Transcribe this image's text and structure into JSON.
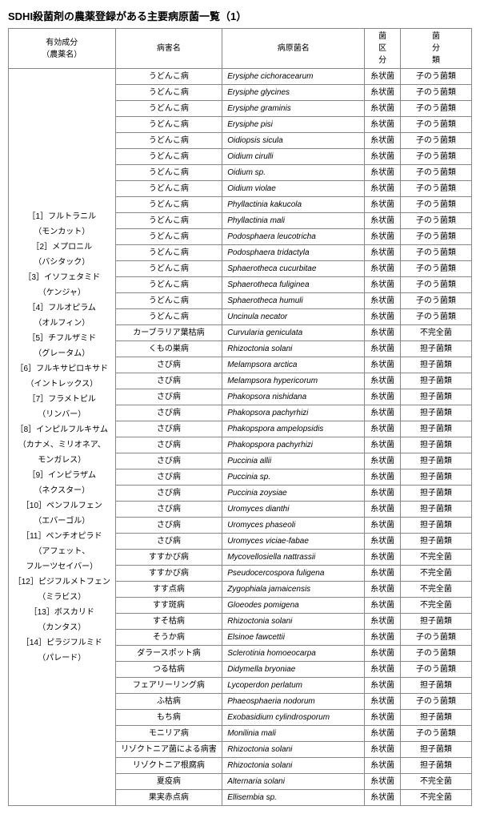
{
  "title": "SDHI殺菌剤の農薬登録がある主要病原菌一覧（1）",
  "columns": {
    "ingredient": "有効成分\n（農薬名）",
    "disease": "病害名",
    "pathogen": "病原菌名",
    "section": "菌\n区\n分",
    "classification": "菌\n分\n類"
  },
  "ingredientList": "［1］フルトラニル\n（モンカット）\n［2］メプロニル\n（バシタック）\n［3］イソフェタミド\n（ケンジャ）\n［4］フルオピラム\n（オルフィン）\n［5］チフルザミド\n（グレータム）\n［6］フルキサピロキサド\n（イントレックス）\n［7］フラメトピル\n（リンバー）\n［8］インピルフルキサム\n（カナメ、ミリオネア、\nモンガレス）\n［9］インピラザム\n（ネクスター）\n［10］ペンフルフェン\n（エバーゴル）\n［11］ペンチオピラド\n（アフェット、\nフルーツセイバー）\n［12］ピジフルメトフェン\n（ミラビス）\n［13］ボスカリド\n（カンタス）\n［14］ピラジフルミド\n（パレード）",
  "rows": [
    {
      "d": "うどんこ病",
      "p": "Erysiphe cichoracearum",
      "s": "糸状菌",
      "c": "子のう菌類"
    },
    {
      "d": "うどんこ病",
      "p": "Erysiphe glycines",
      "s": "糸状菌",
      "c": "子のう菌類"
    },
    {
      "d": "うどんこ病",
      "p": "Erysiphe graminis",
      "s": "糸状菌",
      "c": "子のう菌類"
    },
    {
      "d": "うどんこ病",
      "p": "Erysiphe pisi",
      "s": "糸状菌",
      "c": "子のう菌類"
    },
    {
      "d": "うどんこ病",
      "p": "Oidiopsis sicula",
      "s": "糸状菌",
      "c": "子のう菌類"
    },
    {
      "d": "うどんこ病",
      "p": "Oidium cirulli",
      "s": "糸状菌",
      "c": "子のう菌類"
    },
    {
      "d": "うどんこ病",
      "p": "Oidium sp.",
      "s": "糸状菌",
      "c": "子のう菌類"
    },
    {
      "d": "うどんこ病",
      "p": "Oidium violae",
      "s": "糸状菌",
      "c": "子のう菌類"
    },
    {
      "d": "うどんこ病",
      "p": "Phyllactinia kakucola",
      "s": "糸状菌",
      "c": "子のう菌類"
    },
    {
      "d": "うどんこ病",
      "p": "Phyllactinia mali",
      "s": "糸状菌",
      "c": "子のう菌類"
    },
    {
      "d": "うどんこ病",
      "p": "Podosphaera leucotricha",
      "s": "糸状菌",
      "c": "子のう菌類"
    },
    {
      "d": "うどんこ病",
      "p": "Podosphaera tridactyla",
      "s": "糸状菌",
      "c": "子のう菌類"
    },
    {
      "d": "うどんこ病",
      "p": "Sphaerotheca cucurbitae",
      "s": "糸状菌",
      "c": "子のう菌類"
    },
    {
      "d": "うどんこ病",
      "p": "Sphaerotheca fuliginea",
      "s": "糸状菌",
      "c": "子のう菌類"
    },
    {
      "d": "うどんこ病",
      "p": "Sphaerotheca humuli",
      "s": "糸状菌",
      "c": "子のう菌類"
    },
    {
      "d": "うどんこ病",
      "p": "Uncinula necator",
      "s": "糸状菌",
      "c": "子のう菌類"
    },
    {
      "d": "カーブラリア葉枯病",
      "p": "Curvularia geniculata",
      "s": "糸状菌",
      "c": "不完全菌"
    },
    {
      "d": "くもの巣病",
      "p": "Rhizoctonia solani",
      "s": "糸状菌",
      "c": "担子菌類"
    },
    {
      "d": "さび病",
      "p": "Melampsora arctica",
      "s": "糸状菌",
      "c": "担子菌類"
    },
    {
      "d": "さび病",
      "p": "Melampsora hypericorum",
      "s": "糸状菌",
      "c": "担子菌類"
    },
    {
      "d": "さび病",
      "p": "Phakopsora nishidana",
      "s": "糸状菌",
      "c": "担子菌類"
    },
    {
      "d": "さび病",
      "p": "Phakopsora pachyrhizi",
      "s": "糸状菌",
      "c": "担子菌類"
    },
    {
      "d": "さび病",
      "p": "Phakopspora ampelopsidis",
      "s": "糸状菌",
      "c": "担子菌類"
    },
    {
      "d": "さび病",
      "p": "Phakopspora pachyrhizi",
      "s": "糸状菌",
      "c": "担子菌類"
    },
    {
      "d": "さび病",
      "p": "Puccinia allii",
      "s": "糸状菌",
      "c": "担子菌類"
    },
    {
      "d": "さび病",
      "p": "Puccinia sp.",
      "s": "糸状菌",
      "c": "担子菌類"
    },
    {
      "d": "さび病",
      "p": "Puccinia zoysiae",
      "s": "糸状菌",
      "c": "担子菌類"
    },
    {
      "d": "さび病",
      "p": "Uromyces dianthi",
      "s": "糸状菌",
      "c": "担子菌類"
    },
    {
      "d": "さび病",
      "p": "Uromyces phaseoli",
      "s": "糸状菌",
      "c": "担子菌類"
    },
    {
      "d": "さび病",
      "p": "Uromyces viciae-fabae",
      "s": "糸状菌",
      "c": "担子菌類"
    },
    {
      "d": "すすかび病",
      "p": "Mycovellosiella nattrassii",
      "s": "糸状菌",
      "c": "不完全菌"
    },
    {
      "d": "すすかび病",
      "p": "Pseudocercospora fuligena",
      "s": "糸状菌",
      "c": "不完全菌"
    },
    {
      "d": "すす点病",
      "p": "Zygophiala jamaicensis",
      "s": "糸状菌",
      "c": "不完全菌"
    },
    {
      "d": "すす斑病",
      "p": "Gloeodes pomigena",
      "s": "糸状菌",
      "c": "不完全菌"
    },
    {
      "d": "すそ枯病",
      "p": "Rhizoctonia solani",
      "s": "糸状菌",
      "c": "担子菌類"
    },
    {
      "d": "そうか病",
      "p": "Elsinoe fawcettii",
      "s": "糸状菌",
      "c": "子のう菌類"
    },
    {
      "d": "ダラースポット病",
      "p": "Sclerotinia homoeocarpa",
      "s": "糸状菌",
      "c": "子のう菌類"
    },
    {
      "d": "つる枯病",
      "p": "Didymella bryoniae",
      "s": "糸状菌",
      "c": "子のう菌類"
    },
    {
      "d": "フェアリーリング病",
      "p": "Lycoperdon perlatum",
      "s": "糸状菌",
      "c": "担子菌類"
    },
    {
      "d": "ふ枯病",
      "p": "Phaeosphaeria nodorum",
      "s": "糸状菌",
      "c": "子のう菌類"
    },
    {
      "d": "もち病",
      "p": "Exobasidium cylindrosporum",
      "s": "糸状菌",
      "c": "担子菌類"
    },
    {
      "d": "モニリア病",
      "p": "Monilinia mali",
      "s": "糸状菌",
      "c": "子のう菌類"
    },
    {
      "d": "リゾクトニア菌による病害",
      "p": "Rhizoctonia solani",
      "s": "糸状菌",
      "c": "担子菌類"
    },
    {
      "d": "リゾクトニア根腐病",
      "p": "Rhizoctonia solani",
      "s": "糸状菌",
      "c": "担子菌類"
    },
    {
      "d": "夏疫病",
      "p": "Alternaria solani",
      "s": "糸状菌",
      "c": "不完全菌"
    },
    {
      "d": "果実赤点病",
      "p": "Ellisembia sp.",
      "s": "糸状菌",
      "c": "不完全菌"
    }
  ]
}
